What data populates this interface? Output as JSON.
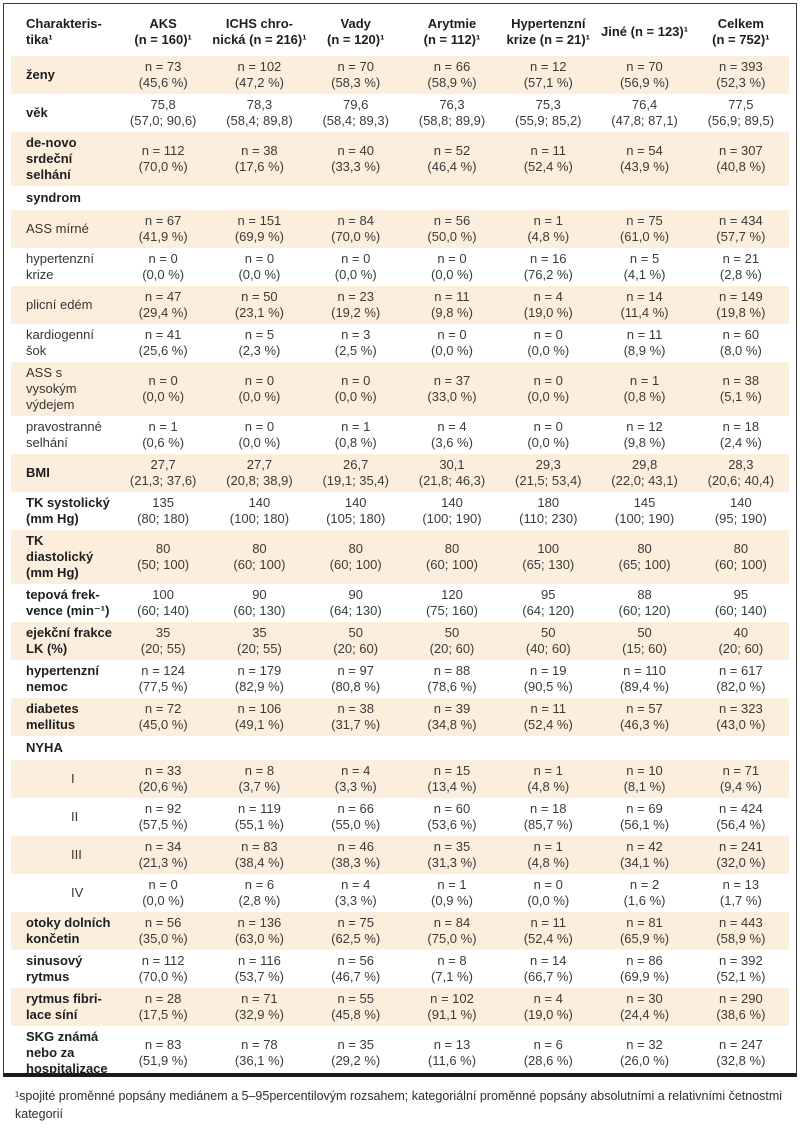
{
  "colors": {
    "row_shade": "#fbeedc",
    "frame_border": "#3c3c3c",
    "text": "#3b3b3a"
  },
  "table": {
    "header": [
      {
        "lines": [
          "Charakteris-",
          "tika¹"
        ]
      },
      {
        "lines": [
          "AKS",
          "(n = 160)¹"
        ]
      },
      {
        "lines": [
          "ICHS chro-",
          "nická (n = 216)¹"
        ]
      },
      {
        "lines": [
          "Vady",
          "(n = 120)¹"
        ]
      },
      {
        "lines": [
          "Arytmie",
          "(n = 112)¹"
        ]
      },
      {
        "lines": [
          "Hypertenzní",
          "krize (n = 21)¹"
        ]
      },
      {
        "lines": [
          "Jiné (n = 123)¹"
        ]
      },
      {
        "lines": [
          "Celkem",
          "(n = 752)¹"
        ]
      }
    ],
    "rows": [
      {
        "label": [
          "ženy"
        ],
        "style": "bold",
        "shade": true,
        "cells": [
          [
            "n = 73",
            "(45,6 %)"
          ],
          [
            "n = 102",
            "(47,2 %)"
          ],
          [
            "n = 70",
            "(58,3 %)"
          ],
          [
            "n = 66",
            "(58,9 %)"
          ],
          [
            "n = 12",
            "(57,1 %)"
          ],
          [
            "n = 70",
            "(56,9 %)"
          ],
          [
            "n = 393",
            "(52,3 %)"
          ]
        ]
      },
      {
        "label": [
          "věk"
        ],
        "style": "bold",
        "shade": false,
        "cells": [
          [
            "75,8",
            "(57,0; 90,6)"
          ],
          [
            "78,3",
            "(58,4; 89,8)"
          ],
          [
            "79,6",
            "(58,4; 89,3)"
          ],
          [
            "76,3",
            "(58,8; 89,9)"
          ],
          [
            "75,3",
            "(55,9; 85,2)"
          ],
          [
            "76,4",
            "(47,8; 87,1)"
          ],
          [
            "77,5",
            "(56,9; 89,5)"
          ]
        ]
      },
      {
        "label": [
          "de-novo",
          "srdeční selhání"
        ],
        "style": "bold",
        "shade": true,
        "cells": [
          [
            "n = 112",
            "(70,0 %)"
          ],
          [
            "n = 38",
            "(17,6 %)"
          ],
          [
            "n = 40",
            "(33,3 %)"
          ],
          [
            "n = 52",
            "(46,4 %)"
          ],
          [
            "n = 11",
            "(52,4 %)"
          ],
          [
            "n = 54",
            "(43,9 %)"
          ],
          [
            "n = 307",
            "(40,8 %)"
          ]
        ]
      },
      {
        "label": [
          "syndrom"
        ],
        "style": "section",
        "shade": false,
        "cells": []
      },
      {
        "label": [
          "ASS mírné"
        ],
        "style": "regular",
        "shade": true,
        "cells": [
          [
            "n = 67",
            "(41,9 %)"
          ],
          [
            "n = 151",
            "(69,9 %)"
          ],
          [
            "n = 84",
            "(70,0 %)"
          ],
          [
            "n = 56",
            "(50,0 %)"
          ],
          [
            "n = 1",
            "(4,8 %)"
          ],
          [
            "n = 75",
            "(61,0 %)"
          ],
          [
            "n = 434",
            "(57,7 %)"
          ]
        ]
      },
      {
        "label": [
          "hypertenzní",
          "krize"
        ],
        "style": "regular",
        "shade": false,
        "cells": [
          [
            "n = 0",
            "(0,0 %)"
          ],
          [
            "n = 0",
            "(0,0 %)"
          ],
          [
            "n = 0",
            "(0,0 %)"
          ],
          [
            "n = 0",
            "(0,0 %)"
          ],
          [
            "n = 16",
            "(76,2 %)"
          ],
          [
            "n = 5",
            "(4,1 %)"
          ],
          [
            "n = 21",
            "(2,8 %)"
          ]
        ]
      },
      {
        "label": [
          "plicní edém"
        ],
        "style": "regular",
        "shade": true,
        "cells": [
          [
            "n = 47",
            "(29,4 %)"
          ],
          [
            "n = 50",
            "(23,1 %)"
          ],
          [
            "n = 23",
            "(19,2 %)"
          ],
          [
            "n = 11",
            "(9,8 %)"
          ],
          [
            "n = 4",
            "(19,0 %)"
          ],
          [
            "n = 14",
            "(11,4 %)"
          ],
          [
            "n = 149",
            "(19,8 %)"
          ]
        ]
      },
      {
        "label": [
          "kardiogenní",
          "šok"
        ],
        "style": "regular",
        "shade": false,
        "cells": [
          [
            "n = 41",
            "(25,6 %)"
          ],
          [
            "n = 5",
            "(2,3 %)"
          ],
          [
            "n = 3",
            "(2,5 %)"
          ],
          [
            "n = 0",
            "(0,0 %)"
          ],
          [
            "n = 0",
            "(0,0 %)"
          ],
          [
            "n = 11",
            "(8,9 %)"
          ],
          [
            "n = 60",
            "(8,0 %)"
          ]
        ]
      },
      {
        "label": [
          "ASS s vysokým",
          "výdejem"
        ],
        "style": "regular",
        "shade": true,
        "cells": [
          [
            "n = 0",
            "(0,0 %)"
          ],
          [
            "n = 0",
            "(0,0 %)"
          ],
          [
            "n = 0",
            "(0,0 %)"
          ],
          [
            "n = 37",
            "(33,0 %)"
          ],
          [
            "n = 0",
            "(0,0 %)"
          ],
          [
            "n = 1",
            "(0,8 %)"
          ],
          [
            "n = 38",
            "(5,1 %)"
          ]
        ]
      },
      {
        "label": [
          "pravostranné",
          "selhání"
        ],
        "style": "regular",
        "shade": false,
        "cells": [
          [
            "n = 1",
            "(0,6 %)"
          ],
          [
            "n = 0",
            "(0,0 %)"
          ],
          [
            "n = 1",
            "(0,8 %)"
          ],
          [
            "n = 4",
            "(3,6 %)"
          ],
          [
            "n = 0",
            "(0,0 %)"
          ],
          [
            "n = 12",
            "(9,8 %)"
          ],
          [
            "n = 18",
            "(2,4 %)"
          ]
        ]
      },
      {
        "label": [
          "BMI"
        ],
        "style": "bold",
        "shade": true,
        "cells": [
          [
            "27,7",
            "(21,3; 37,6)"
          ],
          [
            "27,7",
            "(20,8; 38,9)"
          ],
          [
            "26,7",
            "(19,1; 35,4)"
          ],
          [
            "30,1",
            "(21,8; 46,3)"
          ],
          [
            "29,3",
            "(21,5; 53,4)"
          ],
          [
            "29,8",
            "(22,0; 43,1)"
          ],
          [
            "28,3",
            "(20,6; 40,4)"
          ]
        ]
      },
      {
        "label": [
          "TK systolický",
          "(mm Hg)"
        ],
        "style": "bold",
        "shade": false,
        "cells": [
          [
            "135",
            "(80; 180)"
          ],
          [
            "140",
            "(100; 180)"
          ],
          [
            "140",
            "(105; 180)"
          ],
          [
            "140",
            "(100; 190)"
          ],
          [
            "180",
            "(110; 230)"
          ],
          [
            "145",
            "(100; 190)"
          ],
          [
            "140",
            "(95; 190)"
          ]
        ]
      },
      {
        "label": [
          "TK diastolický",
          "(mm Hg)"
        ],
        "style": "bold",
        "shade": true,
        "cells": [
          [
            "80",
            "(50; 100)"
          ],
          [
            "80",
            "(60; 100)"
          ],
          [
            "80",
            "(60; 100)"
          ],
          [
            "80",
            "(60; 100)"
          ],
          [
            "100",
            "(65; 130)"
          ],
          [
            "80",
            "(65; 100)"
          ],
          [
            "80",
            "(60; 100)"
          ]
        ]
      },
      {
        "label": [
          "tepová frek-",
          "vence (min⁻¹)"
        ],
        "style": "bold",
        "shade": false,
        "cells": [
          [
            "100",
            "(60; 140)"
          ],
          [
            "90",
            "(60; 130)"
          ],
          [
            "90",
            "(64; 130)"
          ],
          [
            "120",
            "(75; 160)"
          ],
          [
            "95",
            "(64; 120)"
          ],
          [
            "88",
            "(60; 120)"
          ],
          [
            "95",
            "(60; 140)"
          ]
        ]
      },
      {
        "label": [
          "ejekční frakce",
          "LK (%)"
        ],
        "style": "bold",
        "shade": true,
        "cells": [
          [
            "35",
            "(20; 55)"
          ],
          [
            "35",
            "(20; 55)"
          ],
          [
            "50",
            "(20; 60)"
          ],
          [
            "50",
            "(20; 60)"
          ],
          [
            "50",
            "(40; 60)"
          ],
          [
            "50",
            "(15; 60)"
          ],
          [
            "40",
            "(20; 60)"
          ]
        ]
      },
      {
        "label": [
          "hypertenzní",
          "nemoc"
        ],
        "style": "bold",
        "shade": false,
        "cells": [
          [
            "n = 124",
            "(77,5 %)"
          ],
          [
            "n = 179",
            "(82,9 %)"
          ],
          [
            "n = 97",
            "(80,8 %)"
          ],
          [
            "n = 88",
            "(78,6 %)"
          ],
          [
            "n = 19",
            "(90,5 %)"
          ],
          [
            "n = 110",
            "(89,4 %)"
          ],
          [
            "n = 617",
            "(82,0 %)"
          ]
        ]
      },
      {
        "label": [
          "diabetes",
          "mellitus"
        ],
        "style": "bold",
        "shade": true,
        "cells": [
          [
            "n = 72",
            "(45,0 %)"
          ],
          [
            "n = 106",
            "(49,1 %)"
          ],
          [
            "n = 38",
            "(31,7 %)"
          ],
          [
            "n = 39",
            "(34,8 %)"
          ],
          [
            "n = 11",
            "(52,4 %)"
          ],
          [
            "n = 57",
            "(46,3 %)"
          ],
          [
            "n = 323",
            "(43,0 %)"
          ]
        ]
      },
      {
        "label": [
          "NYHA"
        ],
        "style": "section",
        "shade": false,
        "cells": []
      },
      {
        "label": [
          "I"
        ],
        "style": "indent",
        "shade": true,
        "cells": [
          [
            "n = 33",
            "(20,6 %)"
          ],
          [
            "n = 8",
            "(3,7 %)"
          ],
          [
            "n = 4",
            "(3,3 %)"
          ],
          [
            "n = 15",
            "(13,4 %)"
          ],
          [
            "n = 1",
            "(4,8 %)"
          ],
          [
            "n = 10",
            "(8,1 %)"
          ],
          [
            "n = 71",
            "(9,4 %)"
          ]
        ]
      },
      {
        "label": [
          "II"
        ],
        "style": "indent",
        "shade": false,
        "cells": [
          [
            "n = 92",
            "(57,5 %)"
          ],
          [
            "n = 119",
            "(55,1 %)"
          ],
          [
            "n = 66",
            "(55,0 %)"
          ],
          [
            "n = 60",
            "(53,6 %)"
          ],
          [
            "n = 18",
            "(85,7 %)"
          ],
          [
            "n = 69",
            "(56,1 %)"
          ],
          [
            "n = 424",
            "(56,4 %)"
          ]
        ]
      },
      {
        "label": [
          "III"
        ],
        "style": "indent",
        "shade": true,
        "cells": [
          [
            "n = 34",
            "(21,3 %)"
          ],
          [
            "n = 83",
            "(38,4 %)"
          ],
          [
            "n = 46",
            "(38,3 %)"
          ],
          [
            "n = 35",
            "(31,3 %)"
          ],
          [
            "n = 1",
            "(4,8 %)"
          ],
          [
            "n = 42",
            "(34,1 %)"
          ],
          [
            "n = 241",
            "(32,0 %)"
          ]
        ]
      },
      {
        "label": [
          "IV"
        ],
        "style": "indent",
        "shade": false,
        "cells": [
          [
            "n = 0",
            "(0,0 %)"
          ],
          [
            "n = 6",
            "(2,8 %)"
          ],
          [
            "n = 4",
            "(3,3 %)"
          ],
          [
            "n = 1",
            "(0,9 %)"
          ],
          [
            "n = 0",
            "(0,0 %)"
          ],
          [
            "n = 2",
            "(1,6 %)"
          ],
          [
            "n = 13",
            "(1,7 %)"
          ]
        ]
      },
      {
        "label": [
          "otoky dolních",
          "končetin"
        ],
        "style": "bold",
        "shade": true,
        "cells": [
          [
            "n = 56",
            "(35,0 %)"
          ],
          [
            "n = 136",
            "(63,0 %)"
          ],
          [
            "n = 75",
            "(62,5 %)"
          ],
          [
            "n = 84",
            "(75,0 %)"
          ],
          [
            "n = 11",
            "(52,4 %)"
          ],
          [
            "n = 81",
            "(65,9 %)"
          ],
          [
            "n = 443",
            "(58,9 %)"
          ]
        ]
      },
      {
        "label": [
          "sinusový",
          "rytmus"
        ],
        "style": "bold",
        "shade": false,
        "cells": [
          [
            "n = 112",
            "(70,0 %)"
          ],
          [
            "n = 116",
            "(53,7 %)"
          ],
          [
            "n = 56",
            "(46,7 %)"
          ],
          [
            "n = 8",
            "(7,1 %)"
          ],
          [
            "n = 14",
            "(66,7 %)"
          ],
          [
            "n = 86",
            "(69,9 %)"
          ],
          [
            "n = 392",
            "(52,1 %)"
          ]
        ]
      },
      {
        "label": [
          "rytmus fibri-",
          "lace síní"
        ],
        "style": "bold",
        "shade": true,
        "cells": [
          [
            "n = 28",
            "(17,5 %)"
          ],
          [
            "n = 71",
            "(32,9 %)"
          ],
          [
            "n = 55",
            "(45,8 %)"
          ],
          [
            "n = 102",
            "(91,1 %)"
          ],
          [
            "n = 4",
            "(19,0 %)"
          ],
          [
            "n = 30",
            "(24,4 %)"
          ],
          [
            "n = 290",
            "(38,6 %)"
          ]
        ]
      },
      {
        "label": [
          "SKG známá",
          "nebo za",
          "hospitalizace"
        ],
        "style": "bold",
        "shade": false,
        "cells": [
          [
            "n = 83",
            "(51,9 %)"
          ],
          [
            "n = 78",
            "(36,1 %)"
          ],
          [
            "n = 35",
            "(29,2 %)"
          ],
          [
            "n = 13",
            "(11,6 %)"
          ],
          [
            "n = 6",
            "(28,6 %)"
          ],
          [
            "n = 32",
            "(26,0 %)"
          ],
          [
            "n = 247",
            "(32,8 %)"
          ]
        ]
      }
    ]
  },
  "footnote": "¹spojité proměnné popsány mediánem a 5–95percentilovým rozsahem; kategoriální proměnné popsány absolutními a relativními četnostmi kategorií"
}
